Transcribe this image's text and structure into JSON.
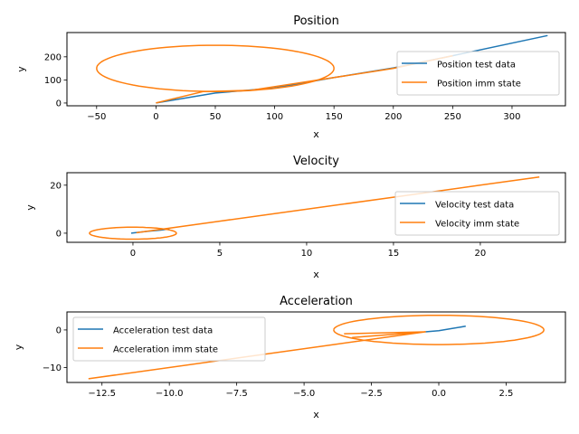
{
  "chart_data": [
    {
      "type": "line",
      "title": "Position",
      "xlabel": "x",
      "ylabel": "y",
      "xlim": [
        -75,
        345
      ],
      "ylim": [
        -12,
        305
      ],
      "xticks": [
        -50,
        0,
        50,
        100,
        150,
        200,
        250,
        300
      ],
      "xtick_labels": [
        "−50",
        "0",
        "50",
        "100",
        "150",
        "200",
        "250",
        "300"
      ],
      "yticks": [
        0,
        100,
        200
      ],
      "ytick_labels": [
        "0",
        "100",
        "200"
      ],
      "legend_position": "right",
      "series": [
        {
          "name": "Position test data",
          "color": "#1f77b4",
          "x": [
            0,
            50,
            100,
            150,
            200,
            250,
            330
          ],
          "y": [
            0,
            43,
            65,
            110,
            152,
            205,
            292
          ]
        },
        {
          "name": "Position imm state",
          "color": "#ff7f0e",
          "x": [
            0,
            40,
            80,
            150,
            200,
            250
          ],
          "y": [
            0,
            50,
            55,
            110,
            150,
            205
          ],
          "loop": {
            "cx": 50,
            "cy": 150,
            "rx": 100,
            "ry": 100,
            "start_deg": 270
          }
        }
      ]
    },
    {
      "type": "line",
      "title": "Velocity",
      "xlabel": "x",
      "ylabel": "y",
      "xlim": [
        -3.8,
        24.9
      ],
      "ylim": [
        -3.8,
        25.2
      ],
      "xticks": [
        0,
        5,
        10,
        15,
        20
      ],
      "xtick_labels": [
        "0",
        "5",
        "10",
        "15",
        "20"
      ],
      "yticks": [
        0,
        20
      ],
      "ytick_labels": [
        "0",
        "20"
      ],
      "legend_position": "right",
      "series": [
        {
          "name": "Velocity test data",
          "color": "#1f77b4",
          "x": [
            -0.1,
            0.4,
            1.0,
            1.6,
            2.1
          ],
          "y": [
            0.0,
            0.4,
            0.9,
            1.3,
            1.8
          ]
        },
        {
          "name": "Velocity imm state",
          "color": "#ff7f0e",
          "x": [
            0.2,
            1.0,
            5.0,
            10.0,
            15.0,
            20.0,
            23.4
          ],
          "y": [
            0.2,
            1.0,
            5.0,
            10.0,
            15.0,
            20.0,
            23.4
          ],
          "loop": {
            "cx": 0,
            "cy": 0,
            "rx": 2.5,
            "ry": 2.5,
            "start_deg": 45
          }
        }
      ]
    },
    {
      "type": "line",
      "title": "Acceleration",
      "xlabel": "x",
      "ylabel": "y",
      "xlim": [
        -13.8,
        4.7
      ],
      "ylim": [
        -14.0,
        4.8
      ],
      "xticks": [
        -12.5,
        -10.0,
        -7.5,
        -5.0,
        -2.5,
        0.0,
        2.5
      ],
      "xtick_labels": [
        "−12.5",
        "−10.0",
        "−7.5",
        "−5.0",
        "−2.5",
        "0.0",
        "2.5"
      ],
      "yticks": [
        -10,
        0
      ],
      "ytick_labels": [
        "−10",
        "0"
      ],
      "legend_position": "upper left",
      "series": [
        {
          "name": "Acceleration test data",
          "color": "#1f77b4",
          "x": [
            -0.5,
            0.0,
            0.5,
            1.0
          ],
          "y": [
            -0.5,
            -0.2,
            0.4,
            1.0
          ]
        },
        {
          "name": "Acceleration imm state",
          "color": "#ff7f0e",
          "x": [
            -0.5,
            -3.2,
            -0.5,
            -3.5,
            -0.5,
            -13.0
          ],
          "y": [
            -0.5,
            -2.0,
            -0.5,
            -1.0,
            -0.5,
            -13.0
          ],
          "loop": {
            "cx": 0,
            "cy": 0,
            "rx": 3.9,
            "ry": 3.9,
            "start_deg": 180
          }
        }
      ]
    }
  ]
}
